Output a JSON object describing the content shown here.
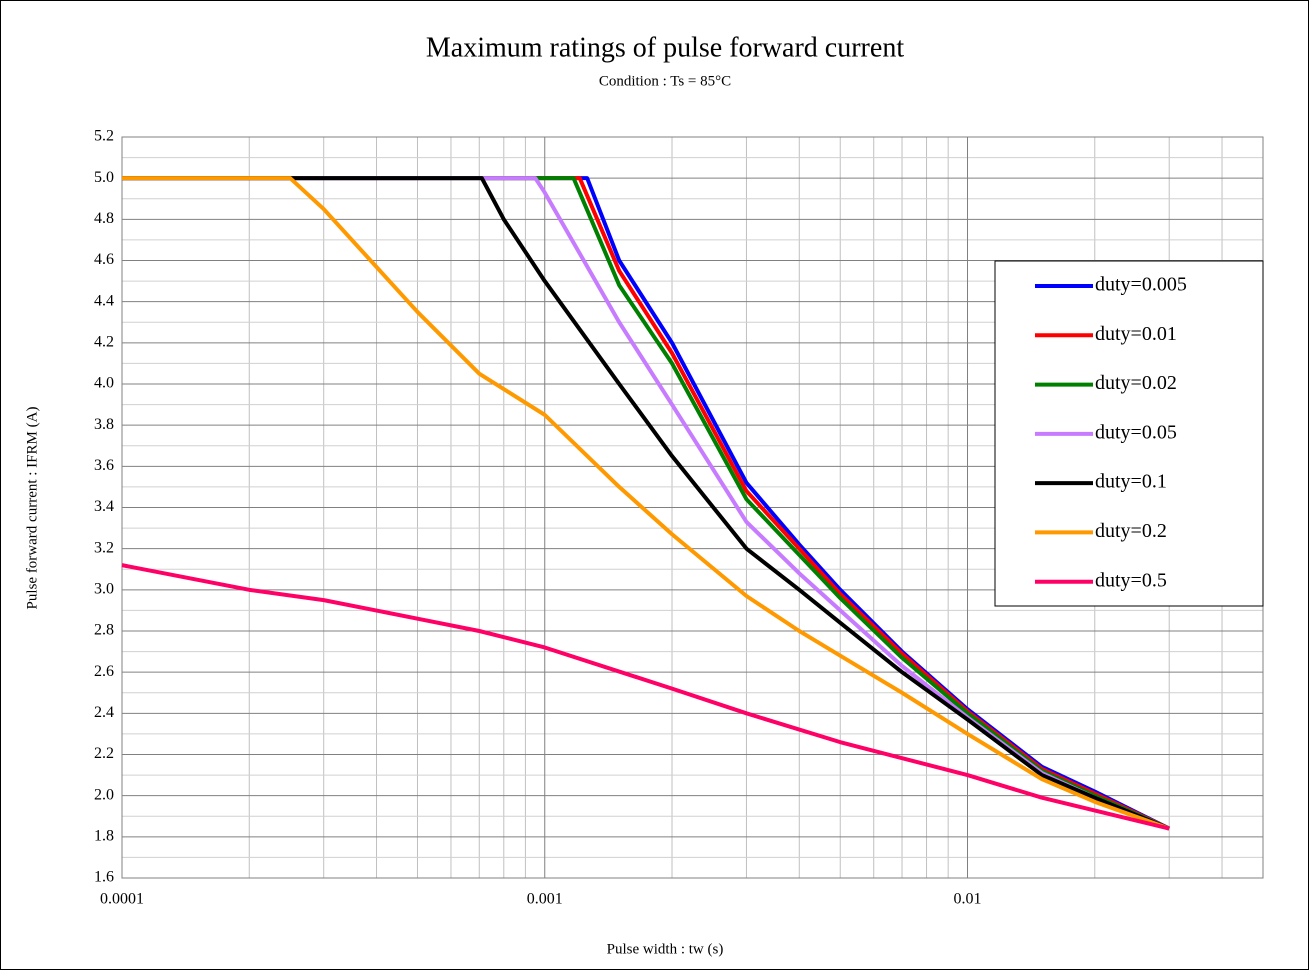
{
  "chart_data": {
    "type": "line",
    "title": "Maximum ratings of pulse forward current",
    "subtitle": "Condition : Ts = 85°C",
    "xlabel": "Pulse width : tw (s)",
    "ylabel": "Pulse forward current : IFRM (A)",
    "xscale": "log",
    "xlim": [
      0.0001,
      0.05
    ],
    "xticks": [
      0.0001,
      0.001,
      0.01
    ],
    "ylim": [
      1.6,
      5.2
    ],
    "yticks": [
      1.6,
      1.8,
      {
        "value": 2,
        "label": "2.0"
      },
      2.2,
      2.4,
      2.6,
      2.8,
      {
        "value": 3,
        "label": "3.0"
      },
      3.2,
      3.4,
      3.6,
      3.8,
      {
        "value": 4,
        "label": "4.0"
      },
      4.2,
      4.4,
      4.6,
      4.8,
      {
        "value": 5,
        "label": "5.0"
      },
      5.2
    ],
    "grid": true,
    "legend": "right",
    "series": [
      {
        "name": "duty=0.005",
        "color": "#0000ff",
        "x": [
          0.0001,
          0.00126,
          0.0015,
          0.002,
          0.003,
          0.004,
          0.005,
          0.007,
          0.01,
          0.015,
          0.02,
          0.03
        ],
        "values": [
          5,
          5,
          4.6,
          4.2,
          3.52,
          3.22,
          3.0,
          2.7,
          2.42,
          2.14,
          2.02,
          1.84
        ]
      },
      {
        "name": "duty=0.01",
        "color": "#ff0000",
        "x": [
          0.0001,
          0.00121,
          0.0015,
          0.002,
          0.003,
          0.004,
          0.005,
          0.007,
          0.01,
          0.015,
          0.02,
          0.03
        ],
        "values": [
          5,
          5,
          4.55,
          4.15,
          3.48,
          3.2,
          2.98,
          2.69,
          2.41,
          2.13,
          2.01,
          1.84
        ]
      },
      {
        "name": "duty=0.02",
        "color": "#008000",
        "x": [
          0.0001,
          0.00117,
          0.0015,
          0.002,
          0.003,
          0.004,
          0.005,
          0.007,
          0.01,
          0.015,
          0.02,
          0.03
        ],
        "values": [
          5,
          5,
          4.48,
          4.1,
          3.44,
          3.17,
          2.96,
          2.67,
          2.4,
          2.12,
          2.0,
          1.84
        ]
      },
      {
        "name": "duty=0.05",
        "color": "#c77cff",
        "x": [
          0.0001,
          0.00095,
          0.001,
          0.0015,
          0.002,
          0.003,
          0.004,
          0.005,
          0.007,
          0.01,
          0.015,
          0.02,
          0.03
        ],
        "values": [
          5,
          5,
          4.93,
          4.3,
          3.9,
          3.33,
          3.08,
          2.9,
          2.63,
          2.38,
          2.11,
          1.99,
          1.84
        ]
      },
      {
        "name": "duty=0.1",
        "color": "#000000",
        "x": [
          0.0001,
          0.00071,
          0.0008,
          0.001,
          0.0015,
          0.002,
          0.003,
          0.004,
          0.005,
          0.007,
          0.01,
          0.015,
          0.02,
          0.03
        ],
        "values": [
          5,
          5,
          4.8,
          4.5,
          4.0,
          3.65,
          3.2,
          3.0,
          2.84,
          2.6,
          2.37,
          2.1,
          1.99,
          1.84
        ]
      },
      {
        "name": "duty=0.2",
        "color": "#ff9900",
        "x": [
          0.0001,
          0.00025,
          0.0003,
          0.0005,
          0.0007,
          0.001,
          0.0015,
          0.002,
          0.003,
          0.004,
          0.005,
          0.007,
          0.01,
          0.015,
          0.02,
          0.03
        ],
        "values": [
          5,
          5,
          4.85,
          4.35,
          4.05,
          3.85,
          3.5,
          3.27,
          2.97,
          2.8,
          2.68,
          2.5,
          2.3,
          2.08,
          1.97,
          1.84
        ]
      },
      {
        "name": "duty=0.5",
        "color": "#ff0066",
        "x": [
          0.0001,
          0.0002,
          0.0003,
          0.0005,
          0.0007,
          0.001,
          0.002,
          0.003,
          0.005,
          0.01,
          0.015,
          0.03
        ],
        "values": [
          3.12,
          3.0,
          2.95,
          2.86,
          2.8,
          2.72,
          2.52,
          2.4,
          2.26,
          2.1,
          1.99,
          1.84
        ]
      }
    ]
  }
}
